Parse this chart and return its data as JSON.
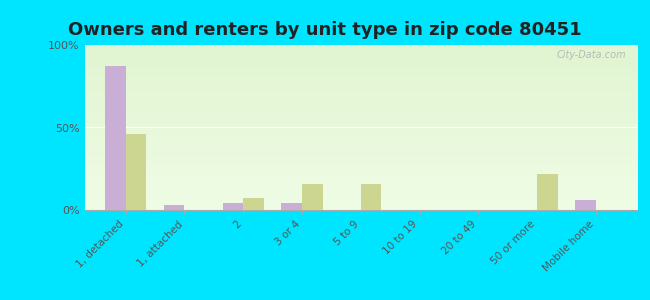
{
  "title": "Owners and renters by unit type in zip code 80451",
  "categories": [
    "1, detached",
    "1, attached",
    "2",
    "3 or 4",
    "5 to 9",
    "10 to 19",
    "20 to 49",
    "50 or more",
    "Mobile home"
  ],
  "owner_values": [
    87,
    3,
    4,
    4,
    0,
    0,
    0,
    0,
    6
  ],
  "renter_values": [
    46,
    0,
    7,
    16,
    16,
    0,
    0,
    22,
    0
  ],
  "owner_color": "#c9aed6",
  "renter_color": "#ccd690",
  "outer_bg": "#00e5ff",
  "ylim": [
    0,
    100
  ],
  "yticks": [
    0,
    50,
    100
  ],
  "ytick_labels": [
    "0%",
    "50%",
    "100%"
  ],
  "title_fontsize": 13,
  "watermark": "City-Data.com"
}
